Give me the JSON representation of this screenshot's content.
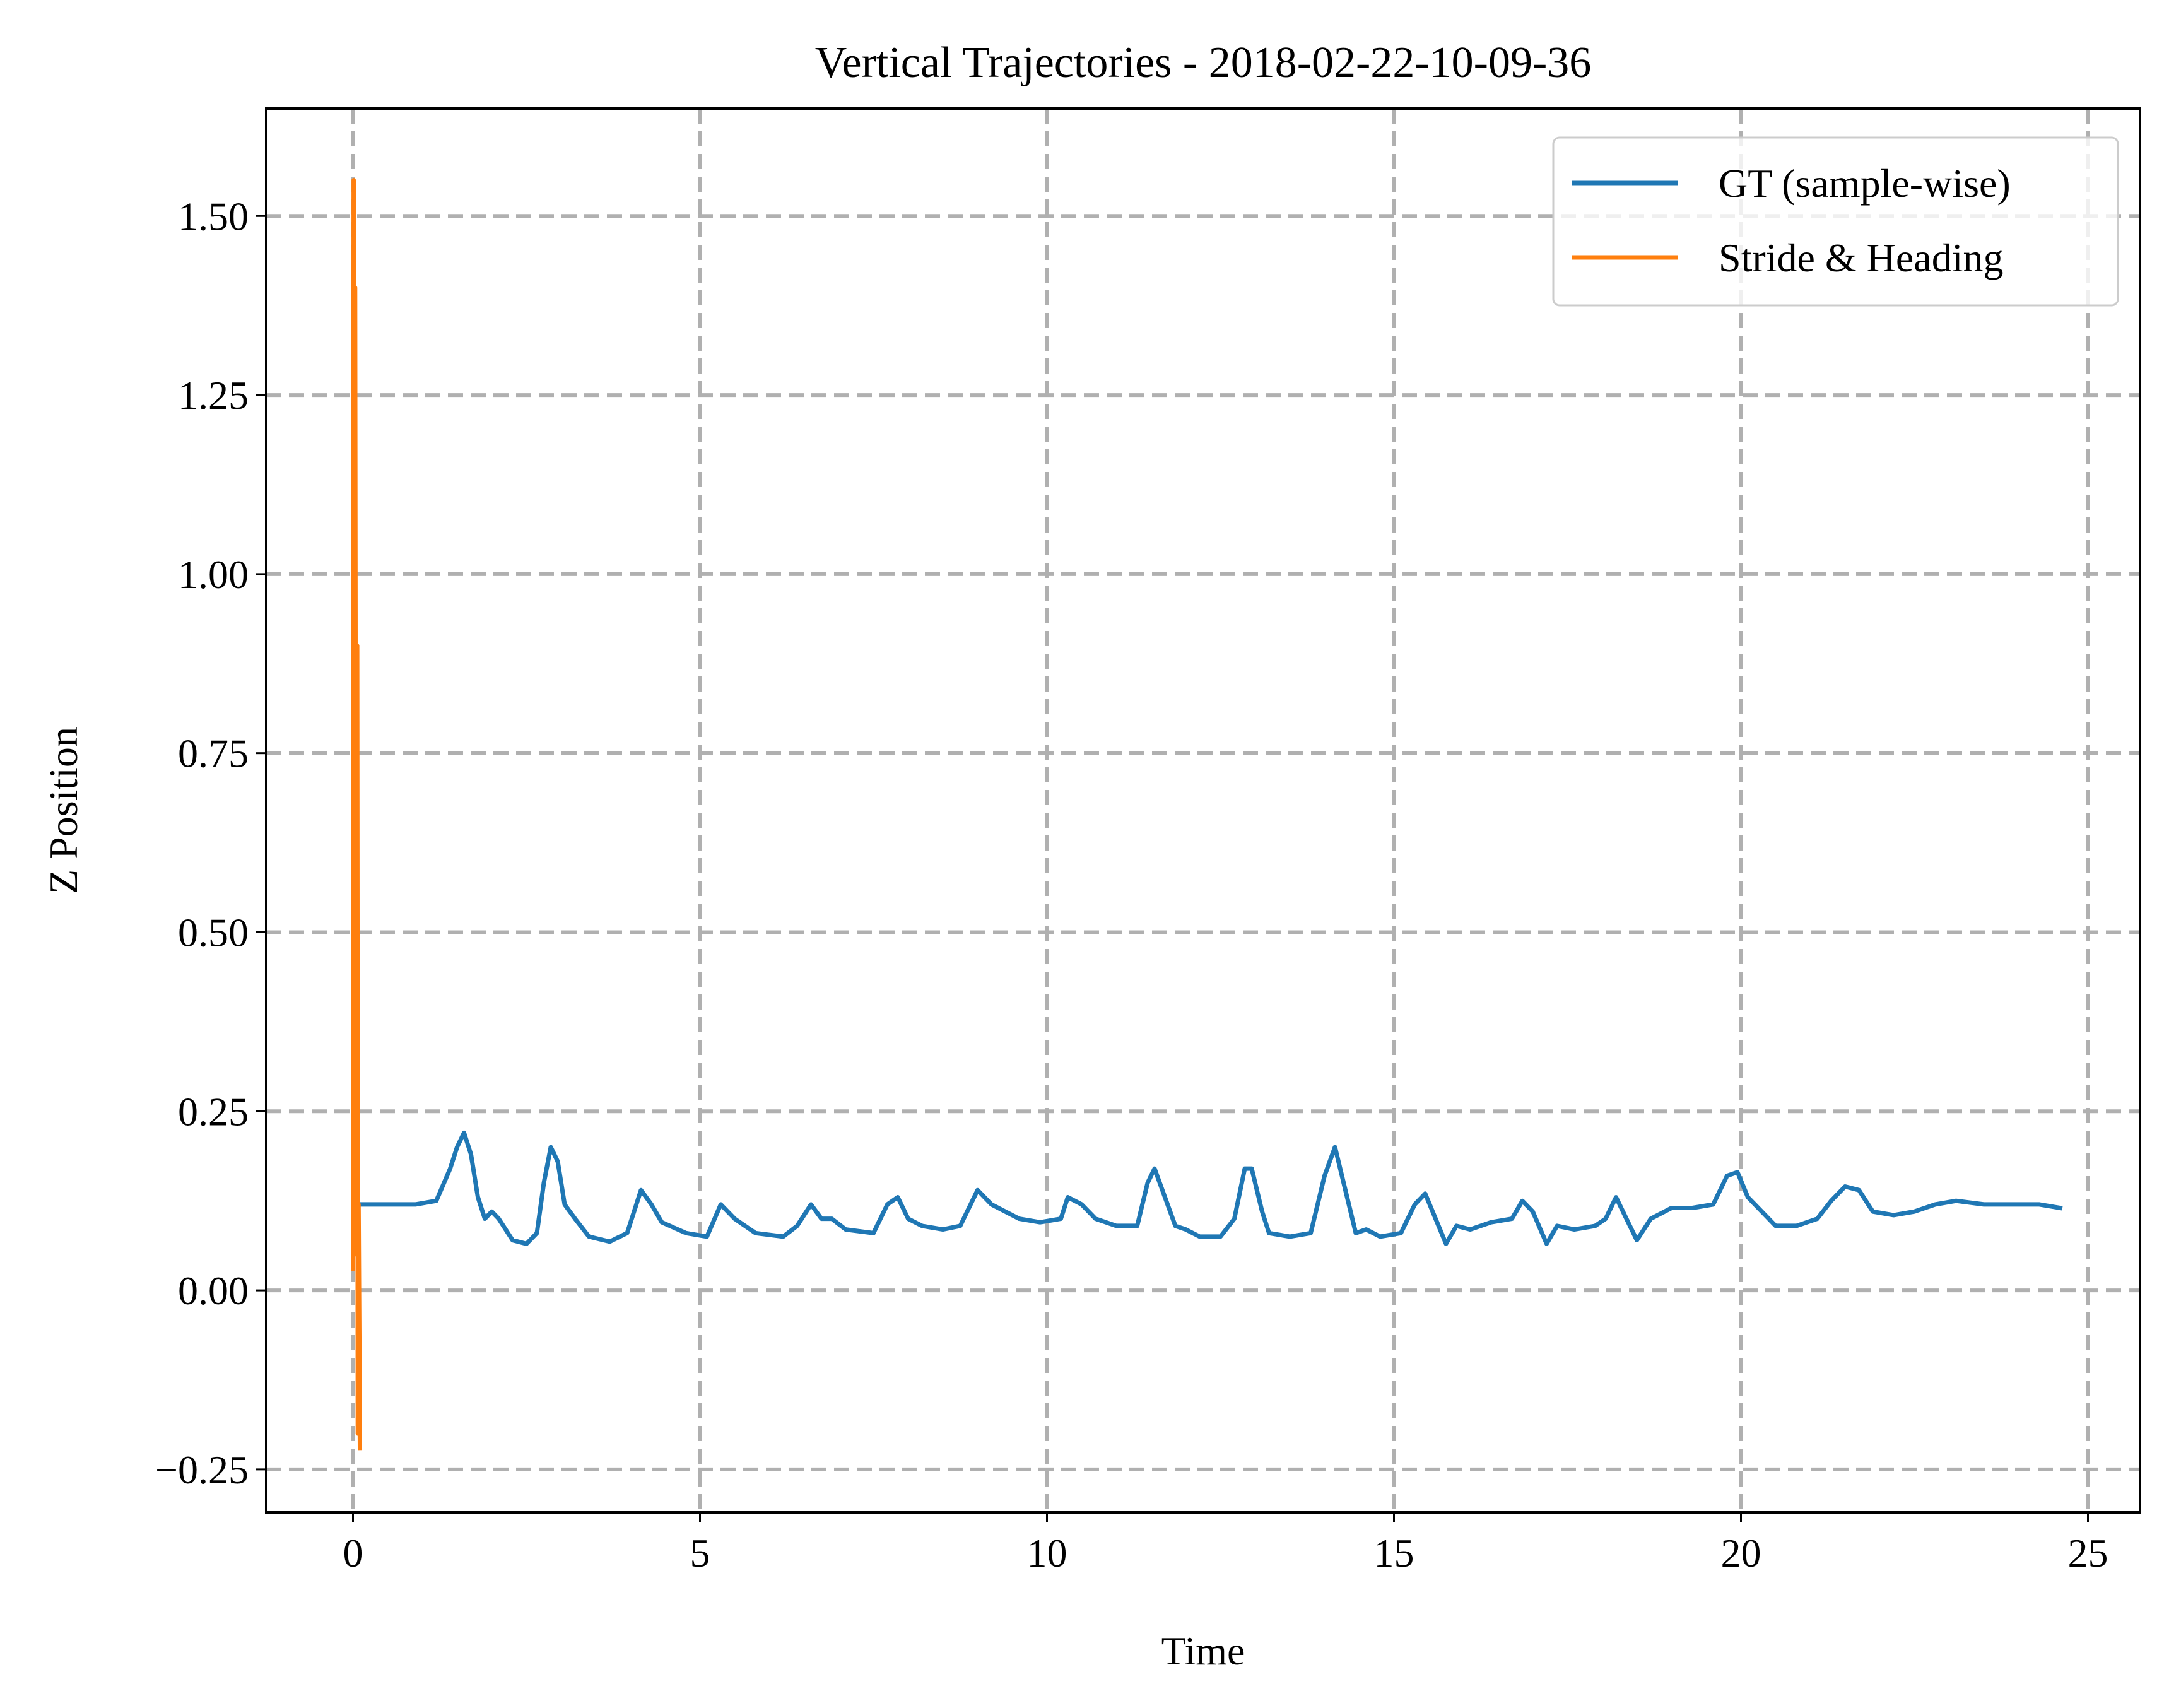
{
  "chart_data": {
    "type": "line",
    "title": "Vertical Trajectories - 2018-02-22-10-09-36",
    "xlabel": "Time",
    "ylabel": "Z Position",
    "xlim": [
      -1.25,
      25.75
    ],
    "ylim": [
      -0.31,
      1.65
    ],
    "x_ticks": [
      0,
      5,
      10,
      15,
      20,
      25
    ],
    "x_tick_labels": [
      "0",
      "5",
      "10",
      "15",
      "20",
      "25"
    ],
    "y_ticks": [
      -0.25,
      0.0,
      0.25,
      0.5,
      0.75,
      1.0,
      1.25,
      1.5
    ],
    "y_tick_labels": [
      "−0.25",
      "0.00",
      "0.25",
      "0.50",
      "0.75",
      "1.00",
      "1.25",
      "1.50"
    ],
    "grid": true,
    "legend_position": "top-right",
    "series": [
      {
        "name": "GT (sample-wise)",
        "color": "#1f77b4",
        "points": [
          [
            0.0,
            0.12
          ],
          [
            0.3,
            0.12
          ],
          [
            0.6,
            0.12
          ],
          [
            0.9,
            0.12
          ],
          [
            1.2,
            0.125
          ],
          [
            1.4,
            0.17
          ],
          [
            1.5,
            0.2
          ],
          [
            1.6,
            0.22
          ],
          [
            1.7,
            0.19
          ],
          [
            1.8,
            0.13
          ],
          [
            1.9,
            0.1
          ],
          [
            2.0,
            0.11
          ],
          [
            2.1,
            0.1
          ],
          [
            2.3,
            0.07
          ],
          [
            2.5,
            0.065
          ],
          [
            2.65,
            0.08
          ],
          [
            2.75,
            0.15
          ],
          [
            2.85,
            0.2
          ],
          [
            2.95,
            0.18
          ],
          [
            3.05,
            0.12
          ],
          [
            3.2,
            0.1
          ],
          [
            3.4,
            0.075
          ],
          [
            3.7,
            0.068
          ],
          [
            3.95,
            0.08
          ],
          [
            4.15,
            0.14
          ],
          [
            4.3,
            0.12
          ],
          [
            4.45,
            0.095
          ],
          [
            4.8,
            0.08
          ],
          [
            5.1,
            0.075
          ],
          [
            5.3,
            0.12
          ],
          [
            5.5,
            0.1
          ],
          [
            5.8,
            0.08
          ],
          [
            6.2,
            0.075
          ],
          [
            6.4,
            0.09
          ],
          [
            6.6,
            0.12
          ],
          [
            6.75,
            0.1
          ],
          [
            6.9,
            0.1
          ],
          [
            7.1,
            0.085
          ],
          [
            7.5,
            0.08
          ],
          [
            7.7,
            0.12
          ],
          [
            7.85,
            0.13
          ],
          [
            8.0,
            0.1
          ],
          [
            8.2,
            0.09
          ],
          [
            8.5,
            0.085
          ],
          [
            8.75,
            0.09
          ],
          [
            8.9,
            0.12
          ],
          [
            9.0,
            0.14
          ],
          [
            9.2,
            0.12
          ],
          [
            9.4,
            0.11
          ],
          [
            9.6,
            0.1
          ],
          [
            9.9,
            0.095
          ],
          [
            10.2,
            0.1
          ],
          [
            10.3,
            0.13
          ],
          [
            10.5,
            0.12
          ],
          [
            10.7,
            0.1
          ],
          [
            11.0,
            0.09
          ],
          [
            11.3,
            0.09
          ],
          [
            11.45,
            0.15
          ],
          [
            11.55,
            0.17
          ],
          [
            11.7,
            0.13
          ],
          [
            11.85,
            0.09
          ],
          [
            12.0,
            0.085
          ],
          [
            12.2,
            0.075
          ],
          [
            12.5,
            0.075
          ],
          [
            12.7,
            0.1
          ],
          [
            12.85,
            0.17
          ],
          [
            12.95,
            0.17
          ],
          [
            13.1,
            0.11
          ],
          [
            13.2,
            0.08
          ],
          [
            13.5,
            0.075
          ],
          [
            13.8,
            0.08
          ],
          [
            14.0,
            0.16
          ],
          [
            14.15,
            0.2
          ],
          [
            14.3,
            0.14
          ],
          [
            14.45,
            0.08
          ],
          [
            14.6,
            0.085
          ],
          [
            14.8,
            0.075
          ],
          [
            15.1,
            0.08
          ],
          [
            15.3,
            0.12
          ],
          [
            15.45,
            0.135
          ],
          [
            15.6,
            0.1
          ],
          [
            15.75,
            0.065
          ],
          [
            15.9,
            0.09
          ],
          [
            16.1,
            0.085
          ],
          [
            16.4,
            0.095
          ],
          [
            16.7,
            0.1
          ],
          [
            16.85,
            0.125
          ],
          [
            17.0,
            0.11
          ],
          [
            17.2,
            0.065
          ],
          [
            17.35,
            0.09
          ],
          [
            17.6,
            0.085
          ],
          [
            17.9,
            0.09
          ],
          [
            18.05,
            0.1
          ],
          [
            18.2,
            0.13
          ],
          [
            18.35,
            0.1
          ],
          [
            18.5,
            0.07
          ],
          [
            18.7,
            0.1
          ],
          [
            19.0,
            0.115
          ],
          [
            19.3,
            0.115
          ],
          [
            19.6,
            0.12
          ],
          [
            19.8,
            0.16
          ],
          [
            19.95,
            0.165
          ],
          [
            20.1,
            0.13
          ],
          [
            20.3,
            0.11
          ],
          [
            20.5,
            0.09
          ],
          [
            20.8,
            0.09
          ],
          [
            21.1,
            0.1
          ],
          [
            21.3,
            0.125
          ],
          [
            21.5,
            0.145
          ],
          [
            21.7,
            0.14
          ],
          [
            21.9,
            0.11
          ],
          [
            22.2,
            0.105
          ],
          [
            22.5,
            0.11
          ],
          [
            22.8,
            0.12
          ],
          [
            23.1,
            0.125
          ],
          [
            23.5,
            0.12
          ],
          [
            23.9,
            0.12
          ],
          [
            24.3,
            0.12
          ],
          [
            24.6,
            0.115
          ]
        ]
      },
      {
        "name": "Stride & Heading",
        "color": "#ff7f0e",
        "points": [
          [
            0.0,
            0.03
          ],
          [
            0.01,
            1.55
          ],
          [
            0.02,
            0.5
          ],
          [
            0.03,
            1.4
          ],
          [
            0.04,
            0.6
          ],
          [
            0.05,
            0.05
          ],
          [
            0.06,
            0.9
          ],
          [
            0.07,
            -0.2
          ],
          [
            0.08,
            0.12
          ],
          [
            0.1,
            -0.22
          ]
        ]
      }
    ]
  }
}
